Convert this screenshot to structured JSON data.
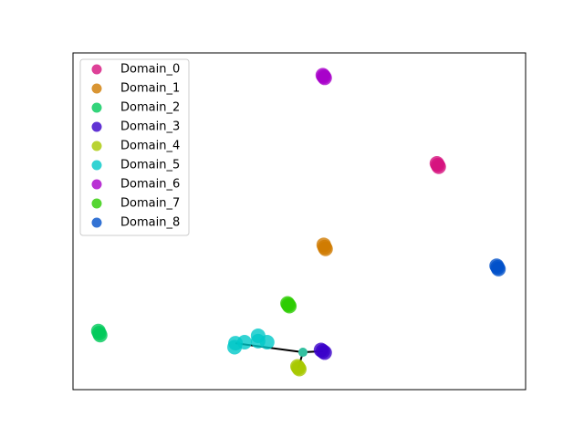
{
  "chart_data": {
    "type": "scatter",
    "xlim": [
      0,
      100
    ],
    "ylim": [
      0,
      100
    ],
    "legend": "upper left",
    "series": [
      {
        "name": "Domain_0",
        "color": "#d6127e",
        "x": [
          80.4,
          80.8,
          80.6
        ],
        "values": [
          67.2,
          66.2,
          66.7
        ]
      },
      {
        "name": "Domain_1",
        "color": "#d07a00",
        "x": [
          55.4,
          55.8,
          55.6
        ],
        "values": [
          43.0,
          41.8,
          42.3
        ]
      },
      {
        "name": "Domain_2",
        "color": "#00c95a",
        "x": [
          5.6,
          6.0,
          5.8
        ],
        "values": [
          17.4,
          16.2,
          16.8
        ]
      },
      {
        "name": "Domain_3",
        "color": "#3a00c9",
        "x": [
          54.8,
          55.6,
          55.2
        ],
        "values": [
          11.8,
          11.0,
          11.4
        ]
      },
      {
        "name": "Domain_4",
        "color": "#a8c800",
        "x": [
          49.6,
          50.0,
          49.8
        ],
        "values": [
          6.9,
          6.1,
          6.5
        ]
      },
      {
        "name": "Domain_5",
        "color": "#00c8c8",
        "x": [
          35.9,
          37.9,
          40.9,
          40.9,
          42.9,
          35.7
        ],
        "values": [
          13.8,
          14.1,
          16.0,
          14.4,
          14.1,
          12.6
        ]
      },
      {
        "name": "Domain_6",
        "color": "#a800c9",
        "x": [
          55.2,
          55.6,
          55.4
        ],
        "values": [
          93.4,
          92.6,
          93.0
        ]
      },
      {
        "name": "Domain_7",
        "color": "#2ccc00",
        "x": [
          47.4,
          47.8,
          47.6
        ],
        "values": [
          25.6,
          24.8,
          25.2
        ]
      },
      {
        "name": "Domain_8",
        "color": "#0050c9",
        "x": [
          93.6,
          94.0,
          93.8
        ],
        "values": [
          36.8,
          35.8,
          36.3
        ]
      }
    ],
    "links": [
      {
        "x": [
          50.8,
          35.9
        ],
        "y": [
          11.1,
          13.8
        ]
      },
      {
        "x": [
          50.8,
          55.2
        ],
        "y": [
          11.1,
          11.4
        ]
      },
      {
        "x": [
          50.8,
          49.8
        ],
        "y": [
          11.1,
          6.5
        ]
      }
    ],
    "link_color": "#000000",
    "center": {
      "x": 50.8,
      "y": 11.1,
      "color": "#33c0a0"
    }
  }
}
